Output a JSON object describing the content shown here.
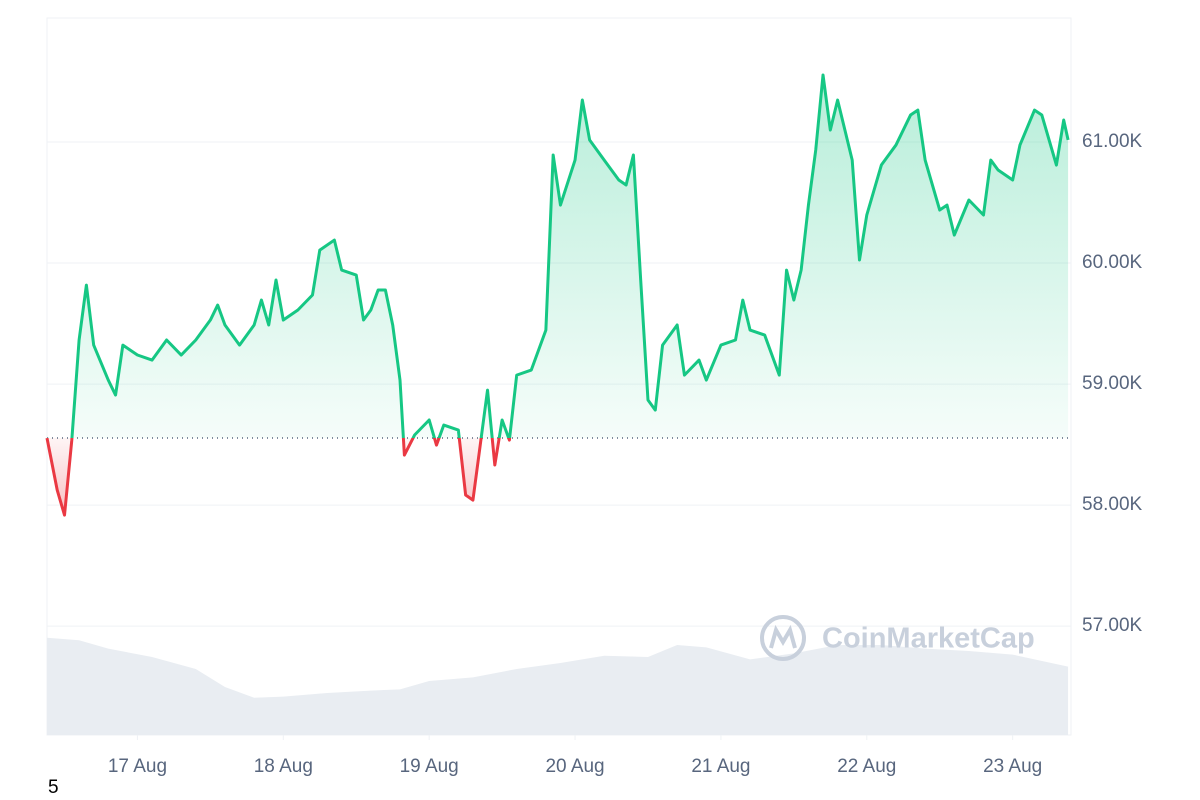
{
  "chart_data": {
    "type": "baseline-line",
    "x": [
      16.38,
      16.45,
      16.5,
      16.55,
      16.6,
      16.65,
      16.7,
      16.8,
      16.85,
      16.9,
      17.0,
      17.1,
      17.2,
      17.3,
      17.4,
      17.5,
      17.55,
      17.6,
      17.7,
      17.8,
      17.85,
      17.9,
      17.95,
      18.0,
      18.1,
      18.2,
      18.25,
      18.35,
      18.4,
      18.5,
      18.55,
      18.6,
      18.65,
      18.7,
      18.75,
      18.8,
      18.83,
      18.9,
      19.0,
      19.05,
      19.1,
      19.2,
      19.25,
      19.3,
      19.35,
      19.4,
      19.45,
      19.5,
      19.55,
      19.6,
      19.7,
      19.8,
      19.85,
      19.9,
      20.0,
      20.05,
      20.1,
      20.2,
      20.3,
      20.35,
      20.4,
      20.45,
      20.5,
      20.55,
      20.6,
      20.7,
      20.75,
      20.85,
      20.9,
      21.0,
      21.1,
      21.15,
      21.2,
      21.3,
      21.4,
      21.45,
      21.5,
      21.55,
      21.6,
      21.65,
      21.7,
      21.75,
      21.8,
      21.85,
      21.9,
      21.95,
      22.0,
      22.1,
      22.2,
      22.3,
      22.35,
      22.4,
      22.5,
      22.55,
      22.6,
      22.7,
      22.8,
      22.85,
      22.9,
      23.0,
      23.05,
      23.15,
      23.2,
      23.3,
      23.35,
      23.38
    ],
    "values": [
      58554,
      58124,
      57917,
      58537,
      59364,
      59818,
      59322,
      59033,
      58909,
      59322,
      59240,
      59198,
      59364,
      59240,
      59364,
      59529,
      59653,
      59488,
      59322,
      59488,
      59694,
      59488,
      59860,
      59529,
      59612,
      59736,
      60107,
      60190,
      59942,
      59901,
      59529,
      59612,
      59777,
      59777,
      59488,
      59033,
      58413,
      58579,
      58703,
      58496,
      58661,
      58620,
      58083,
      58041,
      58496,
      58950,
      58331,
      58703,
      58537,
      59074,
      59116,
      59446,
      60893,
      60479,
      60851,
      61347,
      61017,
      60851,
      60686,
      60645,
      60893,
      59860,
      58868,
      58785,
      59322,
      59488,
      59074,
      59198,
      59033,
      59322,
      59364,
      59694,
      59446,
      59405,
      59074,
      59942,
      59694,
      59942,
      60479,
      60934,
      61554,
      61099,
      61347,
      61099,
      60851,
      60025,
      60397,
      60810,
      60975,
      61223,
      61264,
      60851,
      60438,
      60479,
      60231,
      60521,
      60397,
      60851,
      60769,
      60686,
      60975,
      61264,
      61223,
      60810,
      61182,
      61017
    ],
    "baseline": 58554,
    "up_color": "#16c784",
    "down_color": "#ea3943",
    "xlim": [
      16.38,
      23.4
    ],
    "xticks": [
      {
        "value": 17,
        "label": "17 Aug"
      },
      {
        "value": 18,
        "label": "18 Aug"
      },
      {
        "value": 19,
        "label": "19 Aug"
      },
      {
        "value": 20,
        "label": "20 Aug"
      },
      {
        "value": 21,
        "label": "21 Aug"
      },
      {
        "value": 22,
        "label": "22 Aug"
      },
      {
        "value": 23,
        "label": "23 Aug"
      }
    ],
    "ylim": [
      56100,
      62025
    ],
    "yticks": [
      {
        "value": 57000,
        "label": "57.00K"
      },
      {
        "value": 58000,
        "label": "58.00K"
      },
      {
        "value": 59000,
        "label": "59.00K"
      },
      {
        "value": 60000,
        "label": "60.00K"
      },
      {
        "value": 61000,
        "label": "61.00K"
      }
    ],
    "grid": true,
    "volume": {
      "color": "#e9edf2",
      "ylim": [
        0,
        100
      ],
      "x": [
        16.38,
        16.6,
        16.8,
        17.1,
        17.4,
        17.6,
        17.8,
        18.0,
        18.3,
        18.6,
        18.8,
        19.0,
        19.3,
        19.6,
        19.9,
        20.2,
        20.5,
        20.7,
        20.9,
        21.2,
        21.5,
        21.8,
        22.1,
        22.4,
        22.7,
        23.0,
        23.38
      ],
      "values": [
        81,
        79,
        72,
        65,
        55,
        40,
        31,
        32,
        35,
        37,
        38,
        45,
        48,
        55,
        60,
        66,
        65,
        75,
        73,
        63,
        68,
        75,
        75,
        72,
        70,
        67,
        57
      ]
    },
    "watermark": "CoinMarketCap",
    "footnote": "5"
  }
}
